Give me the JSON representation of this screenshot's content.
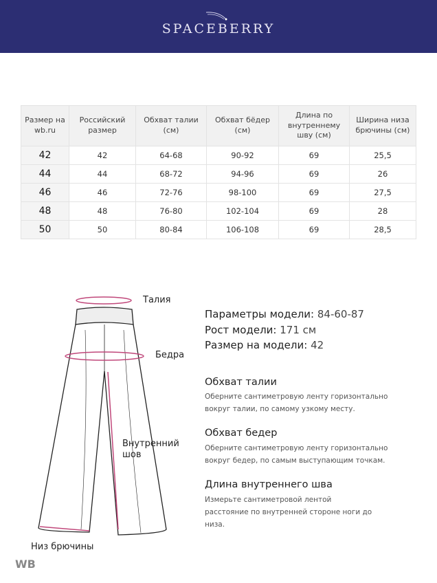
{
  "header": {
    "logo": "SPACEBERRY",
    "background": "#2c2e73"
  },
  "table": {
    "headers": [
      "Размер на wb.ru",
      "Российский размер",
      "Обхват талии (см)",
      "Обхват бёдер (см)",
      "Длина по внутреннему шву (см)",
      "Ширина низа брючины (см)"
    ],
    "rows": [
      [
        "42",
        "42",
        "64-68",
        "90-92",
        "69",
        "25,5"
      ],
      [
        "44",
        "44",
        "68-72",
        "94-96",
        "69",
        "26"
      ],
      [
        "46",
        "46",
        "72-76",
        "98-100",
        "69",
        "27,5"
      ],
      [
        "48",
        "48",
        "76-80",
        "102-104",
        "69",
        "28"
      ],
      [
        "50",
        "50",
        "80-84",
        "106-108",
        "69",
        "28,5"
      ]
    ]
  },
  "diagram": {
    "waist": "Талия",
    "hips": "Бедра",
    "inseam": "Внутренний шов",
    "hem": "Низ брючины",
    "accent": "#c0477a"
  },
  "model": {
    "params_label": "Параметры модели:",
    "params_value": "84-60-87",
    "height_label": "Рост модели:",
    "height_value": "171 см",
    "size_label": "Размер на модели:",
    "size_value": "42"
  },
  "instructions": [
    {
      "title": "Обхват талии",
      "text": "Оберните сантиметровую ленту горизонтально вокруг талии, по самому узкому месту."
    },
    {
      "title": "Обхват бедер",
      "text": "Оберните сантиметровую ленту горизонтально вокруг бедер, по самым выступающим точкам."
    },
    {
      "title": "Длина внутреннего шва",
      "text": "Измерьте сантиметровой лентой расстояние по внутренней стороне ноги до низа."
    }
  ],
  "watermark": "WB"
}
